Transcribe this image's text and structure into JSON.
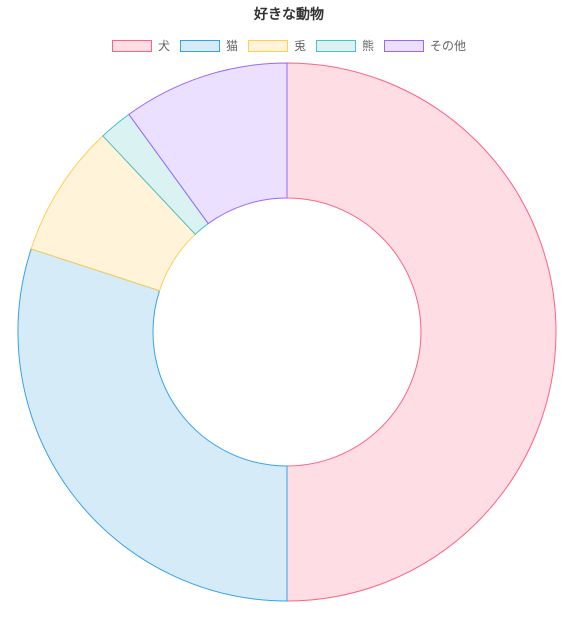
{
  "chart_data": {
    "type": "pie",
    "variant": "doughnut",
    "title": "好きな動物",
    "legend_position": "top",
    "categories": [
      "犬",
      "猫",
      "兎",
      "熊",
      "その他"
    ],
    "values": [
      50,
      30,
      8,
      2,
      10
    ],
    "colors": [
      {
        "fill": "#ffdde4",
        "stroke": "#ff6384"
      },
      {
        "fill": "#d6ebf8",
        "stroke": "#36a2eb"
      },
      {
        "fill": "#fff4d9",
        "stroke": "#ffce56"
      },
      {
        "fill": "#dbf2f2",
        "stroke": "#4bc0c0"
      },
      {
        "fill": "#ebe0ff",
        "stroke": "#9966ff"
      }
    ]
  }
}
